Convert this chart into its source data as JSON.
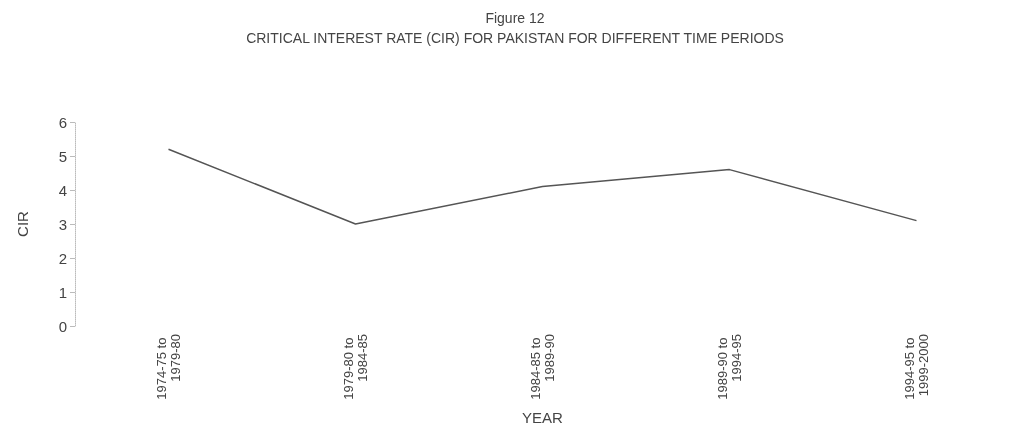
{
  "chart_data": {
    "type": "line",
    "title": "Figure 12",
    "subtitle": "CRITICAL INTEREST RATE (CIR) FOR PAKISTAN FOR DIFFERENT TIME PERIODS",
    "xlabel": "YEAR",
    "ylabel": "CIR",
    "categories": [
      "1974-75 to 1979-80",
      "1979-80 to 1984-85",
      "1984-85 to 1989-90",
      "1989-90 to 1994-95",
      "1994-95 to 1999-2000"
    ],
    "values": [
      5.2,
      3.0,
      4.1,
      4.6,
      3.1
    ],
    "color": "#555555",
    "ylim": [
      0,
      6
    ],
    "yticks": [
      0,
      1,
      2,
      3,
      4,
      5,
      6
    ],
    "grid": false,
    "marker": "none",
    "line_style": "solid"
  }
}
